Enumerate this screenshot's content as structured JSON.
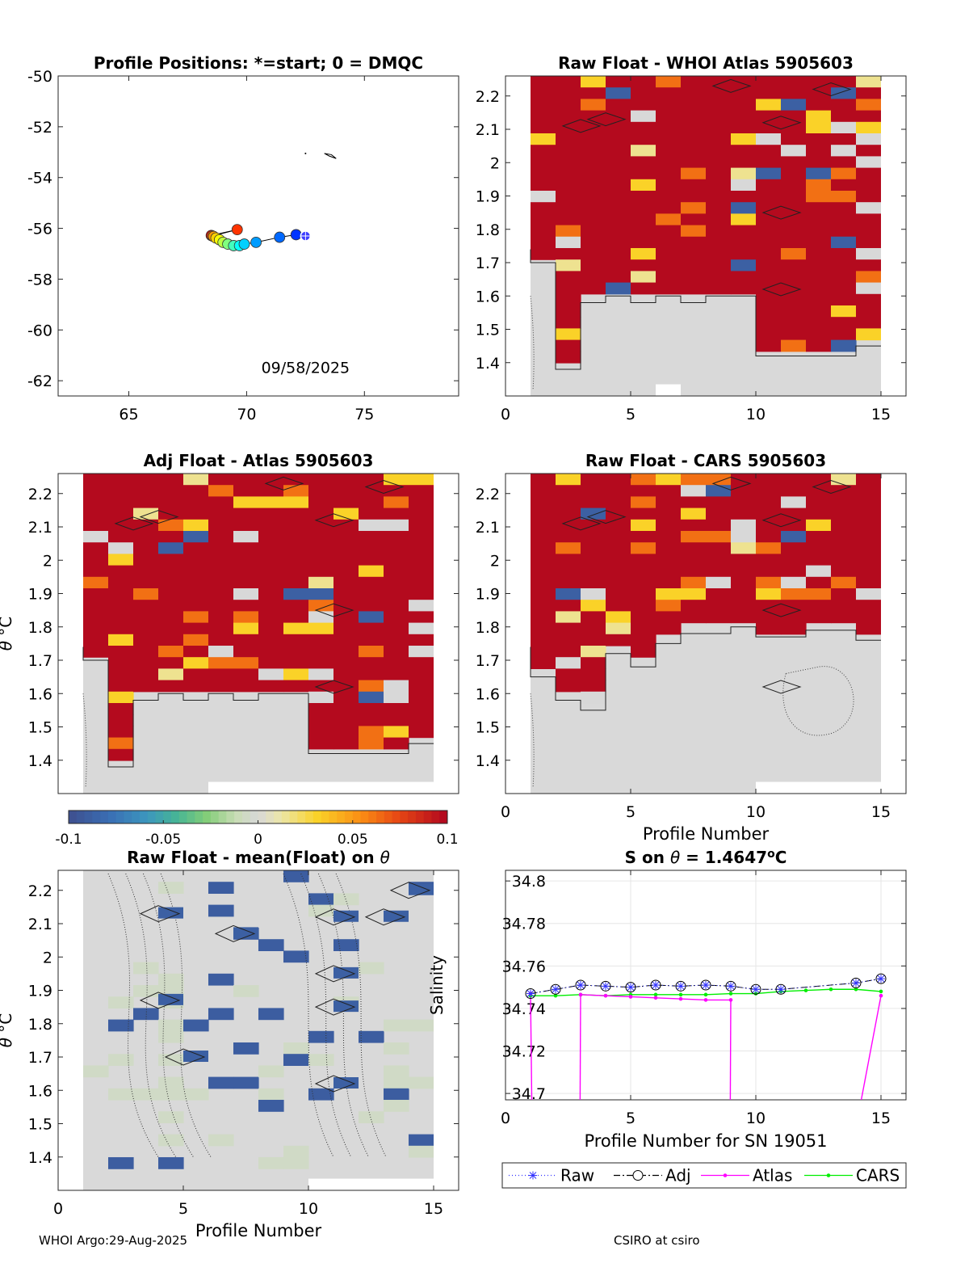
{
  "chart_data": [
    {
      "id": "positions",
      "type": "scatter",
      "title": "Profile Positions: *=start; 0 = DMQC",
      "xlim": [
        62,
        79
      ],
      "ylim": [
        -62.6,
        -50
      ],
      "xticks": [
        "65",
        "70",
        "75"
      ],
      "yticks": [
        "-50",
        "-52",
        "-54",
        "-56",
        "-58",
        "-60",
        "-62"
      ],
      "annotation": "09/58/2025",
      "track": [
        {
          "profile": 1,
          "lon": 72.5,
          "lat": -56.3
        },
        {
          "profile": 2,
          "lon": 72.1,
          "lat": -56.25
        },
        {
          "profile": 3,
          "lon": 71.4,
          "lat": -56.35
        },
        {
          "profile": 4,
          "lon": 70.4,
          "lat": -56.55
        },
        {
          "profile": 5,
          "lon": 69.9,
          "lat": -56.62
        },
        {
          "profile": 6,
          "lon": 69.7,
          "lat": -56.68
        },
        {
          "profile": 7,
          "lon": 69.45,
          "lat": -56.68
        },
        {
          "profile": 8,
          "lon": 69.2,
          "lat": -56.62
        },
        {
          "profile": 9,
          "lon": 69.0,
          "lat": -56.55
        },
        {
          "profile": 10,
          "lon": 68.85,
          "lat": -56.45
        },
        {
          "profile": 11,
          "lon": 68.7,
          "lat": -56.38
        },
        {
          "profile": 12,
          "lon": 68.6,
          "lat": -56.32
        },
        {
          "profile": 13,
          "lon": 68.55,
          "lat": -56.3
        },
        {
          "profile": 14,
          "lon": 69.6,
          "lat": -56.05
        },
        {
          "profile": 15,
          "lon": 68.5,
          "lat": -56.28
        }
      ]
    },
    {
      "id": "raw_whoi",
      "type": "heatmap",
      "title": "Raw Float - WHOI Atlas  5905603",
      "xlim": [
        0,
        16
      ],
      "ylim": [
        1.3,
        2.26
      ],
      "xticks": [
        "0",
        "5",
        "10",
        "15"
      ],
      "yticks": [
        "1.4",
        "1.5",
        "1.6",
        "1.7",
        "1.8",
        "1.9",
        "2",
        "2.1",
        "2.2"
      ],
      "xlabel": "",
      "ylabel": "",
      "colorbar_range": [
        -0.1,
        0.1
      ]
    },
    {
      "id": "adj_atlas",
      "type": "heatmap",
      "title": "Adj Float - Atlas  5905603",
      "xlim": [
        0,
        16
      ],
      "ylim": [
        1.3,
        2.26
      ],
      "yticks": [
        "1.4",
        "1.5",
        "1.6",
        "1.7",
        "1.8",
        "1.9",
        "2",
        "2.1",
        "2.2"
      ],
      "xlabel": "",
      "ylabel": "θ °C",
      "colorbar_range": [
        -0.1,
        0.1
      ]
    },
    {
      "id": "raw_cars",
      "type": "heatmap",
      "title": "Raw Float - CARS  5905603",
      "xlim": [
        0,
        16
      ],
      "ylim": [
        1.3,
        2.26
      ],
      "xticks": [
        "0",
        "5",
        "10",
        "15"
      ],
      "yticks": [
        "1.4",
        "1.5",
        "1.6",
        "1.7",
        "1.8",
        "1.9",
        "2",
        "2.1",
        "2.2"
      ],
      "xlabel": "Profile Number",
      "ylabel": ""
    },
    {
      "id": "raw_mean",
      "type": "heatmap",
      "title": "Raw Float - mean(Float) on θ",
      "xlim": [
        0,
        16
      ],
      "ylim": [
        1.3,
        2.26
      ],
      "xticks": [
        "0",
        "5",
        "10",
        "15"
      ],
      "yticks": [
        "1.4",
        "1.5",
        "1.6",
        "1.7",
        "1.8",
        "1.9",
        "2",
        "2.1",
        "2.2"
      ],
      "xlabel": "Profile Number",
      "ylabel": "θ °C"
    },
    {
      "id": "s_on_theta",
      "type": "line",
      "title": "S on θ = 1.4647°C",
      "xlabel": "Profile Number for SN 19051",
      "ylabel": "Salinity",
      "xlim": [
        0,
        16
      ],
      "ylim": [
        34.697,
        34.805
      ],
      "xticks": [
        "0",
        "5",
        "10",
        "15"
      ],
      "yticks": [
        "34.7",
        "34.72",
        "34.74",
        "34.76",
        "34.78",
        "34.8"
      ],
      "x": [
        1,
        2,
        3,
        4,
        5,
        6,
        7,
        8,
        9,
        10,
        11,
        12,
        13,
        14,
        15
      ],
      "series": [
        {
          "name": "Raw",
          "values": [
            34.747,
            34.749,
            34.751,
            34.7505,
            34.75,
            34.751,
            34.7505,
            34.751,
            34.7505,
            34.749,
            34.749,
            null,
            null,
            34.752,
            34.754
          ]
        },
        {
          "name": "Adj",
          "values": [
            34.747,
            34.749,
            34.751,
            34.7505,
            34.75,
            34.751,
            34.7505,
            34.751,
            34.7505,
            34.749,
            34.749,
            null,
            null,
            34.752,
            34.754
          ]
        },
        {
          "name": "Atlas",
          "values": [
            34.747,
            null,
            34.7465,
            34.746,
            34.7455,
            34.745,
            34.7445,
            34.744,
            34.744,
            null,
            null,
            null,
            null,
            null,
            34.746
          ]
        },
        {
          "name": "CARS",
          "values": [
            34.746,
            34.746,
            34.7465,
            34.746,
            34.7465,
            34.7465,
            34.7465,
            34.7465,
            34.747,
            34.747,
            34.748,
            34.7485,
            34.749,
            34.749,
            34.748
          ]
        }
      ]
    }
  ],
  "colorbar": {
    "ticks": [
      "-0.1",
      "-0.05",
      "0",
      "0.05",
      "0.1"
    ]
  },
  "footer": {
    "left": "WHOI Argo:29-Aug-2025",
    "right": "CSIRO at csiro"
  },
  "colors": {
    "raw": "#3333ff",
    "adj": "#000000",
    "atlas": "#ff00ff",
    "cars": "#00ee00",
    "field_gray": "#d8d8d8",
    "deep_red": "#b40a1e"
  }
}
